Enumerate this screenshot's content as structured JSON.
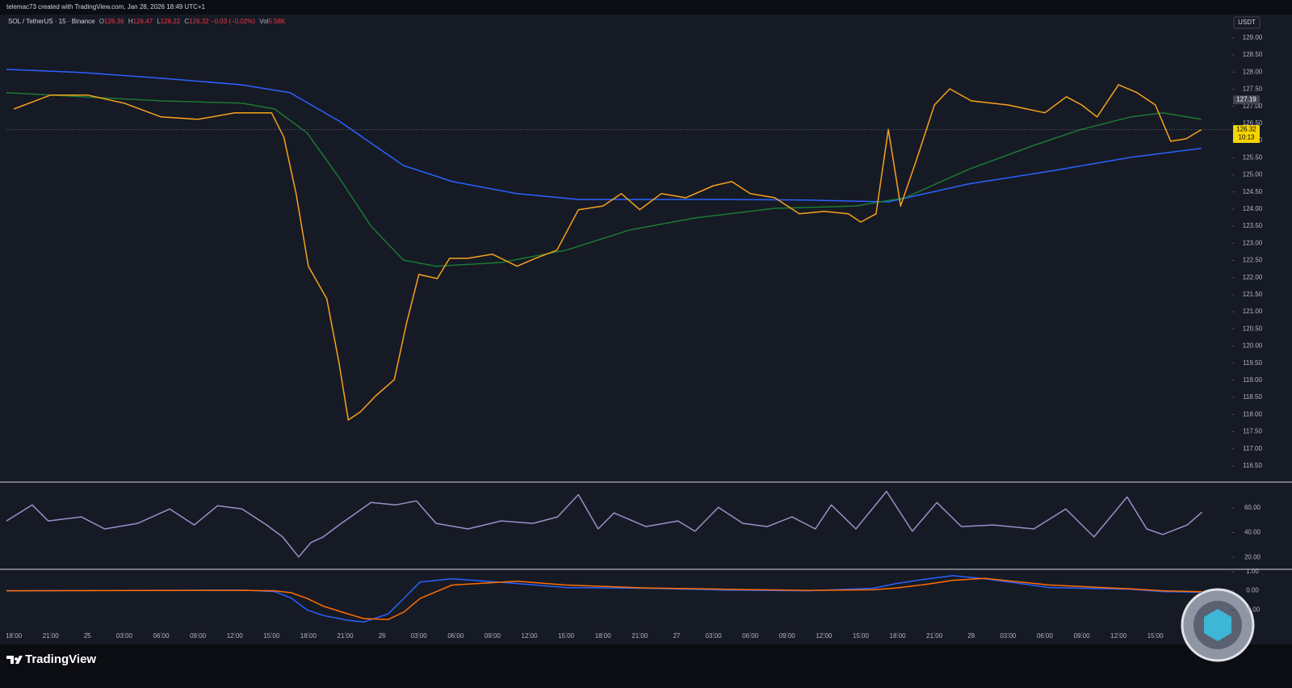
{
  "page": {
    "credit": "telemac73 created with TradingView.com, Jan 28, 2026 18:49 UTC+1",
    "brand": "TradingView"
  },
  "chart_data": [
    {
      "type": "line",
      "title": "SOL / TetherUS · 15 · Binance",
      "ohlc": [
        {
          "label": "O",
          "value": 126.36
        },
        {
          "label": "H",
          "value": 126.47
        },
        {
          "label": "L",
          "value": 126.22
        },
        {
          "label": "C",
          "value": 126.32
        }
      ],
      "change": "−0.03 (−0.02%)",
      "volume": {
        "label": "Vol",
        "value": "5.58K"
      },
      "unit": "USDT",
      "xlim": [
        -0.6,
        99.2
      ],
      "ylim": [
        116.05,
        129.68
      ],
      "yticks": [
        {
          "value": 116.5,
          "label": "116.50"
        },
        {
          "value": 117,
          "label": "117.00"
        },
        {
          "value": 117.5,
          "label": "117.50"
        },
        {
          "value": 118,
          "label": "118.00"
        },
        {
          "value": 118.5,
          "label": "118.50"
        },
        {
          "value": 119,
          "label": "119.00"
        },
        {
          "value": 119.5,
          "label": "119.50"
        },
        {
          "value": 120,
          "label": "120.00"
        },
        {
          "value": 120.5,
          "label": "120.50"
        },
        {
          "value": 121,
          "label": "121.00"
        },
        {
          "value": 121.5,
          "label": "121.50"
        },
        {
          "value": 122,
          "label": "122.00"
        },
        {
          "value": 122.5,
          "label": "122.50"
        },
        {
          "value": 123,
          "label": "123.00"
        },
        {
          "value": 123.5,
          "label": "123.50"
        },
        {
          "value": 124,
          "label": "124.00"
        },
        {
          "value": 124.5,
          "label": "124.50"
        },
        {
          "value": 125,
          "label": "125.00"
        },
        {
          "value": 125.5,
          "label": "125.50"
        },
        {
          "value": 126,
          "label": "126.00"
        },
        {
          "value": 126.5,
          "label": "126.50"
        },
        {
          "value": 127,
          "label": "127.00"
        },
        {
          "value": 127.5,
          "label": "127.50"
        },
        {
          "value": 128,
          "label": "128.00"
        },
        {
          "value": 128.5,
          "label": "128.50"
        },
        {
          "value": 129,
          "label": "129.00"
        }
      ],
      "price_labels": [
        {
          "value": 127.19,
          "color": "#434651",
          "text_color": "#ffffff"
        },
        {
          "value": 126.32,
          "countdown": "10:13",
          "color": "#f5d400",
          "text_color": "#000000"
        }
      ],
      "series": [
        {
          "color": "#2962ff",
          "x": [
            -0.6,
            5.5,
            12,
            18.5,
            22.5,
            26.5,
            31.75,
            35.75,
            41,
            46,
            51.5,
            58,
            64.75,
            71.25,
            77.75,
            84.5,
            91,
            96.75
          ],
          "values": [
            128.08,
            127.99,
            127.82,
            127.63,
            127.4,
            126.57,
            125.27,
            124.8,
            124.45,
            124.28,
            124.28,
            124.28,
            124.26,
            124.21,
            124.73,
            125.11,
            125.51,
            125.77
          ]
        },
        {
          "color": "#1b7a33",
          "x": [
            -0.6,
            5.5,
            12,
            18.6,
            21.25,
            23.9,
            26.5,
            29.1,
            31.75,
            34.4,
            39.7,
            45,
            50.2,
            55.5,
            62,
            68.6,
            72.6,
            77.8,
            83.1,
            87,
            91,
            93.6,
            96.75
          ],
          "values": [
            127.4,
            127.28,
            127.16,
            127.09,
            126.92,
            126.22,
            124.92,
            123.5,
            122.51,
            122.33,
            122.44,
            122.8,
            123.39,
            123.74,
            124.02,
            124.09,
            124.33,
            125.16,
            125.86,
            126.33,
            126.69,
            126.81,
            126.62
          ]
        },
        {
          "color": "#f7a21b",
          "x": [
            0,
            3,
            6,
            9,
            12,
            15,
            18,
            21,
            22,
            23,
            24,
            25.5,
            26.5,
            27.25,
            28.25,
            29.5,
            31,
            32,
            33,
            34.5,
            35.5,
            37,
            39,
            41,
            42.5,
            44.25,
            46,
            48,
            49.5,
            51,
            52.75,
            54.75,
            57,
            58.5,
            60,
            62,
            64,
            66,
            68,
            69,
            70.25,
            71.25,
            72.25,
            73.5,
            75,
            76.25,
            78,
            81,
            84,
            85.75,
            87,
            88.25,
            90,
            91.5,
            93,
            94.25,
            95.5,
            96.75
          ],
          "values": [
            126.92,
            127.33,
            127.33,
            127.09,
            126.69,
            126.62,
            126.81,
            126.81,
            126.1,
            124.45,
            122.33,
            121.38,
            119.5,
            117.84,
            118.08,
            118.55,
            119.02,
            120.67,
            122.09,
            121.97,
            122.56,
            122.56,
            122.68,
            122.33,
            122.56,
            122.8,
            123.98,
            124.09,
            124.45,
            123.98,
            124.45,
            124.33,
            124.68,
            124.8,
            124.45,
            124.33,
            123.86,
            123.93,
            123.86,
            123.62,
            123.86,
            126.33,
            124.09,
            125.39,
            127.04,
            127.51,
            127.16,
            127.04,
            126.81,
            127.28,
            127.04,
            126.69,
            127.63,
            127.4,
            127.04,
            125.98,
            126.05,
            126.32
          ]
        }
      ]
    },
    {
      "type": "line",
      "xlim": [
        -0.6,
        99.2
      ],
      "ylim": [
        11,
        79.4
      ],
      "yticks": [
        {
          "value": 60,
          "label": "60.00"
        },
        {
          "value": 40,
          "label": "40.00"
        },
        {
          "value": 20,
          "label": "20.00"
        }
      ],
      "series": [
        {
          "color": "#9c8fc7",
          "x": [
            -0.6,
            1.5,
            2.8,
            5.5,
            7.4,
            10.1,
            12.7,
            14.7,
            16.6,
            18.6,
            20.6,
            21.9,
            23.2,
            24.2,
            25.2,
            26.5,
            29.1,
            31.1,
            32.8,
            34.4,
            37.0,
            39.7,
            42.3,
            44.3,
            46,
            47.6,
            48.9,
            51.5,
            54.1,
            55.5,
            57.4,
            59.4,
            61.4,
            63.4,
            65.3,
            66.6,
            68.6,
            71.1,
            73.2,
            75.2,
            77.2,
            79.8,
            83.1,
            85.7,
            88,
            90.7,
            92.3,
            93.6,
            95.6,
            96.8
          ],
          "values": [
            49.4,
            62.3,
            49.4,
            52.6,
            42.9,
            47.4,
            59,
            46.1,
            61.6,
            59,
            46.1,
            36.5,
            20.3,
            31.9,
            36.5,
            46.1,
            64.2,
            62.3,
            65.5,
            47.4,
            42.9,
            49.4,
            47.4,
            52.6,
            70.6,
            42.9,
            55.8,
            44.8,
            49.4,
            41,
            60.3,
            47.4,
            44.8,
            52.6,
            42.9,
            62.3,
            42.9,
            73.2,
            41,
            64.2,
            44.8,
            46.1,
            42.9,
            59,
            36.5,
            68.7,
            42.9,
            38.4,
            46.1,
            56.5
          ]
        }
      ]
    },
    {
      "type": "line",
      "xlim": [
        -0.6,
        99.2
      ],
      "ylim": [
        -2.04,
        1.08
      ],
      "yticks": [
        {
          "value": 1,
          "label": "1.00"
        },
        {
          "value": 0,
          "label": "0.00"
        },
        {
          "value": -1,
          "label": "-1.00"
        }
      ],
      "xticks": [
        {
          "value": 0,
          "label": "18:00"
        },
        {
          "value": 3,
          "label": "21:00"
        },
        {
          "value": 6,
          "label": "25"
        },
        {
          "value": 9,
          "label": "03:00"
        },
        {
          "value": 12,
          "label": "06:00"
        },
        {
          "value": 15,
          "label": "09:00"
        },
        {
          "value": 18,
          "label": "12:00"
        },
        {
          "value": 21,
          "label": "15:00"
        },
        {
          "value": 24,
          "label": "18:00"
        },
        {
          "value": 27,
          "label": "21:00"
        },
        {
          "value": 30,
          "label": "26"
        },
        {
          "value": 33,
          "label": "03:00"
        },
        {
          "value": 36,
          "label": "06:00"
        },
        {
          "value": 39,
          "label": "09:00"
        },
        {
          "value": 42,
          "label": "12:00"
        },
        {
          "value": 45,
          "label": "15:00"
        },
        {
          "value": 48,
          "label": "18:00"
        },
        {
          "value": 51,
          "label": "21:00"
        },
        {
          "value": 54,
          "label": "27"
        },
        {
          "value": 57,
          "label": "03:00"
        },
        {
          "value": 60,
          "label": "06:00"
        },
        {
          "value": 63,
          "label": "09:00"
        },
        {
          "value": 66,
          "label": "12:00"
        },
        {
          "value": 69,
          "label": "15:00"
        },
        {
          "value": 72,
          "label": "18:00"
        },
        {
          "value": 75,
          "label": "21:00"
        },
        {
          "value": 78,
          "label": "28"
        },
        {
          "value": 81,
          "label": "03:00"
        },
        {
          "value": 84,
          "label": "06:00"
        },
        {
          "value": 87,
          "label": "09:00"
        },
        {
          "value": 90,
          "label": "12:00"
        },
        {
          "value": 93,
          "label": "15:00"
        }
      ],
      "series": [
        {
          "color": "#2962ff",
          "x": [
            -0.6,
            18.6,
            21.25,
            22.6,
            23.9,
            25.2,
            27.2,
            28.5,
            30.5,
            31.8,
            33.1,
            35.7,
            41,
            45,
            51.5,
            58,
            64.7,
            70,
            71.9,
            74.5,
            76.5,
            79.1,
            84.4,
            91,
            93.6,
            96.8
          ],
          "values": [
            0,
            0.04,
            -0.04,
            -0.38,
            -1,
            -1.29,
            -1.54,
            -1.63,
            -1.21,
            -0.38,
            0.46,
            0.63,
            0.38,
            0.17,
            0.13,
            0.04,
            0,
            0.13,
            0.38,
            0.63,
            0.79,
            0.63,
            0.17,
            0.08,
            -0.04,
            -0.08
          ]
        },
        {
          "color": "#ff6d00",
          "x": [
            -0.6,
            18.6,
            21.25,
            22.6,
            23.9,
            25.2,
            27.2,
            28.5,
            30.5,
            31.8,
            33.1,
            35.7,
            41,
            45,
            51.5,
            58,
            64.7,
            70,
            71.9,
            74.5,
            76.5,
            79.1,
            84.4,
            91,
            93.6,
            96.8
          ],
          "values": [
            0,
            0.02,
            0,
            -0.1,
            -0.4,
            -0.8,
            -1.2,
            -1.45,
            -1.5,
            -1.1,
            -0.4,
            0.3,
            0.5,
            0.3,
            0.15,
            0.08,
            0.02,
            0.05,
            0.15,
            0.35,
            0.55,
            0.65,
            0.3,
            0.1,
            0,
            -0.05
          ]
        }
      ]
    }
  ]
}
